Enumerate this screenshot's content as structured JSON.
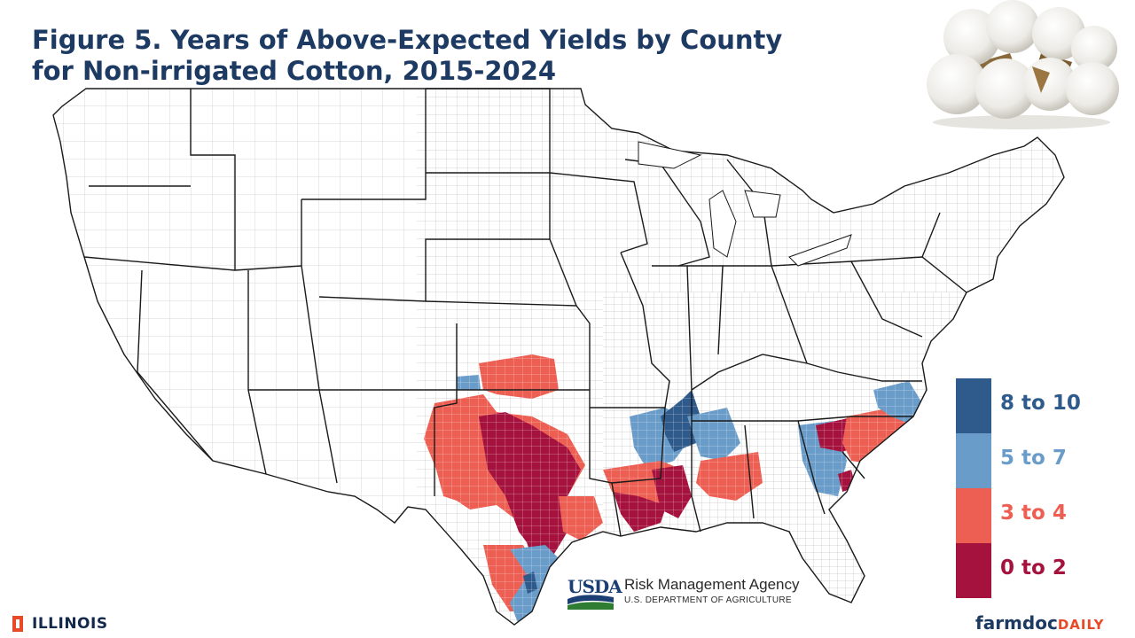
{
  "title": {
    "line1": "Figure 5. Years of Above-Expected Yields by County",
    "line2": "for Non-irrigated Cotton, 2015-2024"
  },
  "legend": [
    {
      "label": "8 to 10",
      "color": "#2f5a8c",
      "text_color": "#2f5a8c"
    },
    {
      "label": "5 to 7",
      "color": "#6a9cc9",
      "text_color": "#6a9cc9"
    },
    {
      "label": "3 to 4",
      "color": "#ec5f52",
      "text_color": "#ec5f52"
    },
    {
      "label": "0 to 2",
      "color": "#a5123d",
      "text_color": "#a5123d"
    }
  ],
  "usda": {
    "mark": "USDA",
    "agency": "Risk Management Agency",
    "department": "U.S. DEPARTMENT OF AGRICULTURE"
  },
  "footer": {
    "university": "ILLINOIS",
    "brand_part1": "farmdoc",
    "brand_part2": "DAILY"
  },
  "image": {
    "name": "cotton-boll-photo"
  }
}
